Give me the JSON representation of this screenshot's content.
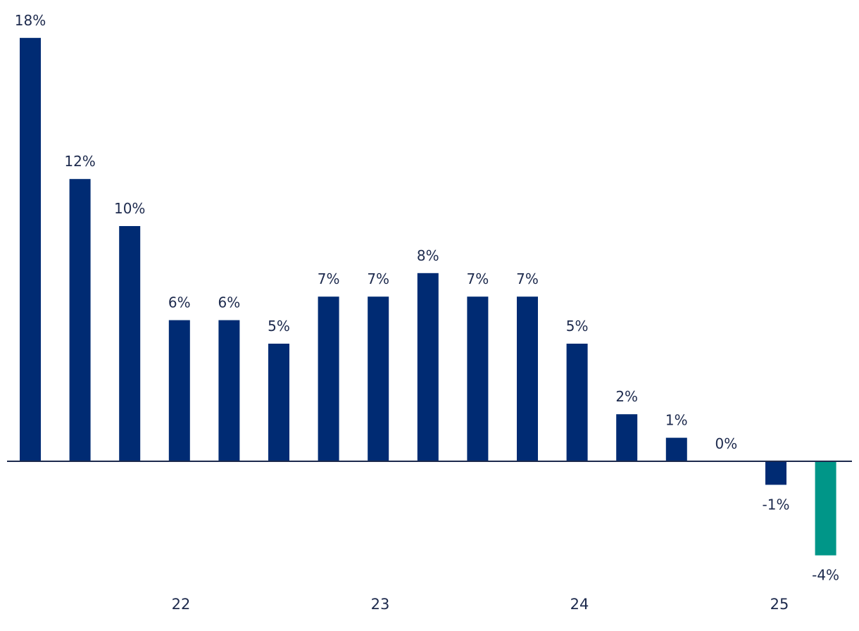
{
  "chart_data": {
    "type": "bar",
    "title": "",
    "xlabel": "",
    "ylabel": "",
    "ylim": [
      -4,
      18
    ],
    "grid": false,
    "legend": "none",
    "colors": {
      "default": "#002b73",
      "highlight": "#009688",
      "axis": "#1d2a4d"
    },
    "x_tick_labels": [
      "22",
      "23",
      "24",
      "25"
    ],
    "values": [
      18,
      12,
      10,
      6,
      6,
      5,
      7,
      7,
      8,
      7,
      7,
      5,
      2,
      1,
      0,
      -1,
      -4
    ],
    "data_labels": [
      "18%",
      "12%",
      "10%",
      "6%",
      "6%",
      "5%",
      "7%",
      "7%",
      "8%",
      "7%",
      "7%",
      "5%",
      "2%",
      "1%",
      "0%",
      "-1%",
      "-4%"
    ],
    "highlight_index": 16
  }
}
